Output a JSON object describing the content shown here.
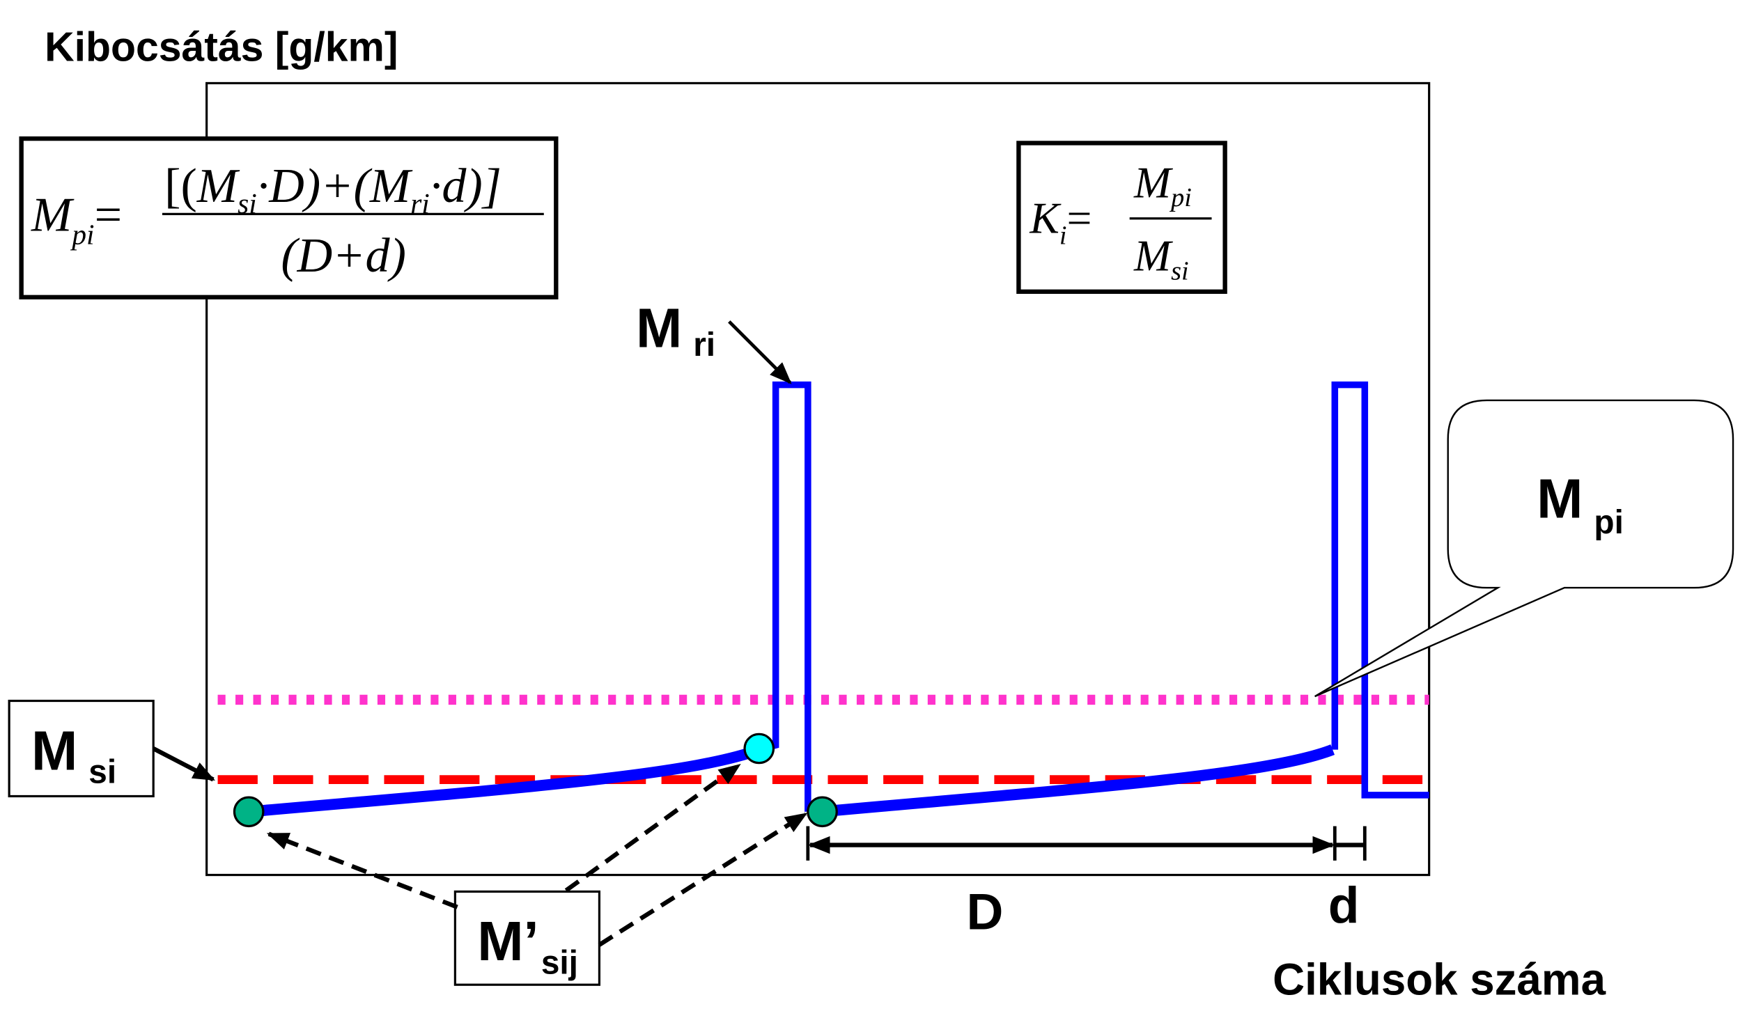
{
  "title": "Kibocsátás [g/km]",
  "x_axis_label": "Ciklusok száma",
  "formula_mpi": {
    "lhs": "M",
    "lhs_sub": "pi",
    "equals": "=",
    "numerator": [
      "[(",
      "M",
      "si",
      "·D)+(",
      "M",
      "ri",
      "·d)]"
    ],
    "denominator": "(D+d)"
  },
  "formula_ki": {
    "lhs": "K",
    "lhs_sub": "i",
    "equals": "=",
    "num": "M",
    "num_sub": "pi",
    "den": "M",
    "den_sub": "si"
  },
  "labels": {
    "mri": "M",
    "mri_sub": "ri",
    "msi": "M",
    "msi_sub": "si",
    "msij": "M’",
    "msij_sub": "sij",
    "mpi": "M",
    "mpi_sub": "pi",
    "D": "D",
    "d": "d"
  },
  "colors": {
    "emission": "#0000ff",
    "msi_line": "#ff0000",
    "mpi_line": "#ff33cc",
    "point": "#00b386",
    "point_peak": "#00ffff"
  }
}
